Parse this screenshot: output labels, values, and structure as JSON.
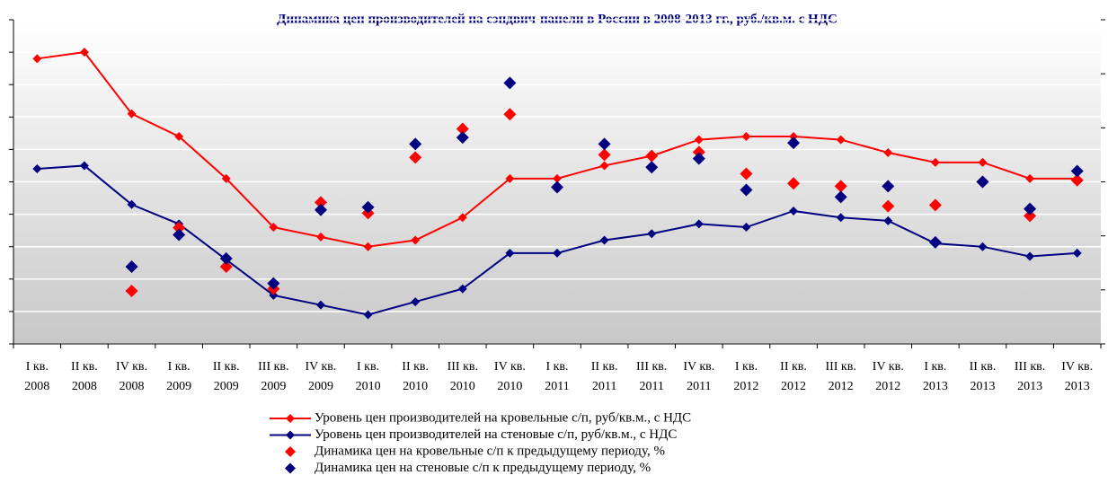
{
  "chart_data": {
    "type": "line",
    "title": "Динамика цен производителей на сэндвич-панели в России в 2008-2013 гг., руб./кв.м. с НДС",
    "categories": [
      "I кв. 2008",
      "II кв. 2008",
      "IV кв. 2008",
      "I кв. 2009",
      "II кв. 2009",
      "III кв. 2009",
      "IV кв. 2009",
      "I кв. 2010",
      "II кв. 2010",
      "III кв. 2010",
      "IV кв. 2010",
      "I кв. 2011",
      "II кв. 2011",
      "III кв. 2011",
      "IV кв. 2011",
      "I кв. 2012",
      "II кв. 2012",
      "III кв. 2012",
      "IV кв. 2012",
      "I кв. 2013",
      "II кв. 2013",
      "III кв. 2013",
      "IV кв. 2013"
    ],
    "ylim": [
      0,
      10
    ],
    "yticks": [
      0,
      1,
      2,
      3,
      4,
      5,
      6,
      7,
      8,
      9,
      10
    ],
    "y2lim": [
      0,
      6
    ],
    "y2ticks": [
      0,
      1,
      2,
      3,
      4,
      5,
      6
    ],
    "grid": true,
    "legend": "bottom",
    "series": [
      {
        "name": "Уровень цен производителей на кровельные с/п, руб/кв.м.,  с НДС",
        "type": "line",
        "color": "#ff0000",
        "values": [
          8.8,
          9.0,
          7.1,
          6.4,
          5.1,
          3.6,
          3.3,
          3.0,
          3.2,
          3.9,
          5.1,
          5.1,
          5.5,
          5.8,
          6.3,
          6.4,
          6.4,
          6.3,
          5.9,
          5.6,
          5.6,
          5.1,
          5.1
        ]
      },
      {
        "name": "Уровень цен производителей на стеновые с/п, руб/кв.м.,  с НДС",
        "type": "line",
        "color": "#000080",
        "values": [
          5.4,
          5.5,
          4.3,
          3.7,
          2.6,
          1.5,
          1.2,
          0.9,
          1.3,
          1.7,
          2.8,
          2.8,
          3.2,
          3.4,
          3.7,
          3.6,
          4.1,
          3.9,
          3.8,
          3.1,
          3.0,
          2.7,
          2.8
        ]
      },
      {
        "name": "Динамика цен на кровельные с/п к предыдущему периоду, %",
        "type": "scatter",
        "axis": "y2",
        "color": "#ff0000",
        "values": [
          null,
          null,
          0.98,
          2.15,
          1.43,
          1.02,
          2.62,
          2.42,
          3.45,
          3.98,
          4.25,
          null,
          3.5,
          3.48,
          3.55,
          3.15,
          2.97,
          2.92,
          2.55,
          2.57,
          3.0,
          2.37,
          3.03
        ]
      },
      {
        "name": "Динамика цен на стеновые с/п к предыдущему периоду, %",
        "type": "scatter",
        "axis": "y2",
        "color": "#000080",
        "values": [
          null,
          null,
          1.43,
          2.02,
          1.58,
          1.12,
          2.48,
          2.53,
          3.7,
          3.82,
          4.83,
          2.9,
          3.7,
          3.27,
          3.43,
          2.85,
          3.72,
          2.72,
          2.92,
          1.88,
          3.0,
          2.5,
          3.2
        ]
      }
    ]
  }
}
